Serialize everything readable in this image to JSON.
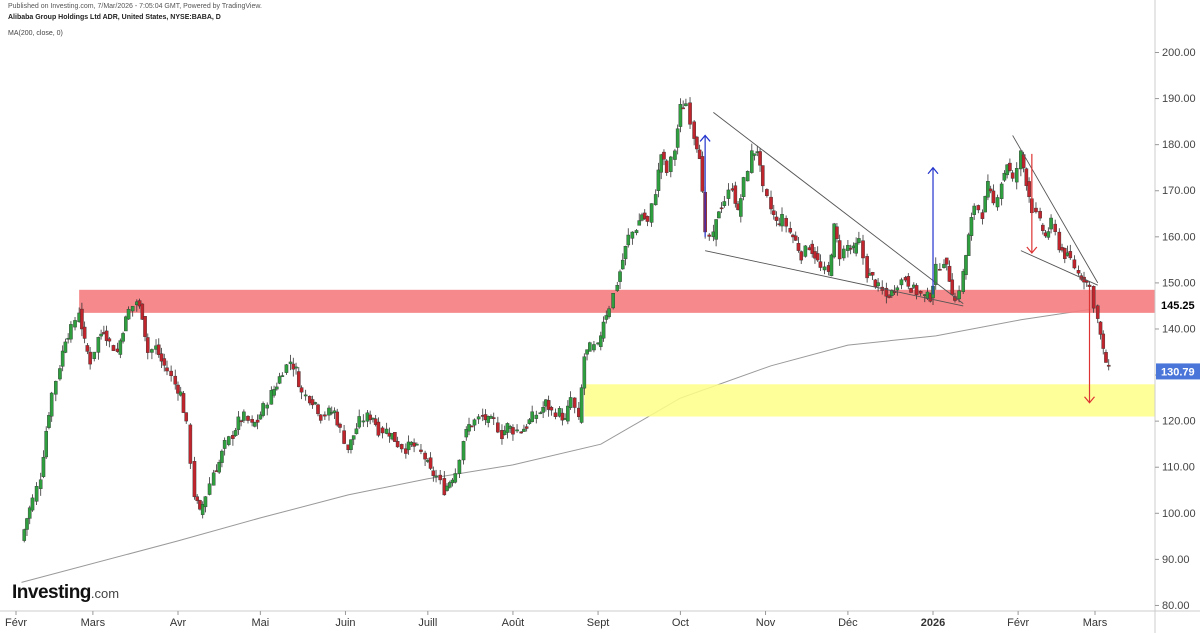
{
  "header": {
    "published": "Published on Investing.com, 7/Mar/2026 - 7:05:04 GMT, Powered by TradingView.",
    "title": "Alibaba Group Holdings Ltd ADR, United States, NYSE:BABA, D",
    "indicator": "MA(200, close, 0)"
  },
  "logo": {
    "brand": "Investing",
    "domain": ".com"
  },
  "colors": {
    "up": "#2e9e3e",
    "down": "#c0242c",
    "ma": "#999999",
    "resistance_zone": "#f47c7e",
    "support_zone": "#ffff88",
    "price_label_last": "#4a76d9",
    "arrow_up": "#2233cc",
    "arrow_down": "#dd3333"
  },
  "chart_data": {
    "type": "candlestick",
    "title": "Alibaba Group Holdings Ltd ADR, United States, NYSE:BABA, D",
    "ylim": [
      78,
      206
    ],
    "y_ticks": [
      "80.00",
      "90.00",
      "100.00",
      "110.00",
      "120.00",
      "130.00",
      "140.00",
      "150.00",
      "160.00",
      "170.00",
      "180.00",
      "190.00",
      "200.00"
    ],
    "x_ticks": [
      "Févr",
      "Mars",
      "Avr",
      "Mai",
      "Juin",
      "Juill",
      "Août",
      "Sept",
      "Oct",
      "Nov",
      "Déc",
      "2026",
      "Févr",
      "Mars"
    ],
    "price_labels": {
      "level": "145.25",
      "last": "130.79"
    },
    "close_path": [
      [
        "2025-02-03",
        94
      ],
      [
        "2025-02-05",
        99
      ],
      [
        "2025-02-07",
        103
      ],
      [
        "2025-02-10",
        108
      ],
      [
        "2025-02-12",
        118
      ],
      [
        "2025-02-14",
        126
      ],
      [
        "2025-02-17",
        132
      ],
      [
        "2025-02-19",
        138
      ],
      [
        "2025-02-21",
        140
      ],
      [
        "2025-02-24",
        144
      ],
      [
        "2025-02-26",
        137
      ],
      [
        "2025-02-28",
        133
      ],
      [
        "2025-03-03",
        138
      ],
      [
        "2025-03-05",
        140
      ],
      [
        "2025-03-07",
        137
      ],
      [
        "2025-03-10",
        135
      ],
      [
        "2025-03-12",
        140
      ],
      [
        "2025-03-14",
        144
      ],
      [
        "2025-03-17",
        146
      ],
      [
        "2025-03-19",
        143
      ],
      [
        "2025-03-21",
        135
      ],
      [
        "2025-03-24",
        136
      ],
      [
        "2025-03-26",
        133
      ],
      [
        "2025-03-28",
        131
      ],
      [
        "2025-03-31",
        128
      ],
      [
        "2025-04-02",
        126
      ],
      [
        "2025-04-04",
        119
      ],
      [
        "2025-04-07",
        104
      ],
      [
        "2025-04-09",
        100
      ],
      [
        "2025-04-11",
        104
      ],
      [
        "2025-04-14",
        109
      ],
      [
        "2025-04-16",
        111
      ],
      [
        "2025-04-18",
        115
      ],
      [
        "2025-04-21",
        117
      ],
      [
        "2025-04-23",
        120
      ],
      [
        "2025-04-25",
        121
      ],
      [
        "2025-04-28",
        119
      ],
      [
        "2025-04-30",
        120
      ],
      [
        "2025-05-02",
        123
      ],
      [
        "2025-05-05",
        126
      ],
      [
        "2025-05-07",
        128
      ],
      [
        "2025-05-09",
        131
      ],
      [
        "2025-05-12",
        133
      ],
      [
        "2025-05-14",
        131
      ],
      [
        "2025-05-16",
        126
      ],
      [
        "2025-05-19",
        125
      ],
      [
        "2025-05-21",
        124
      ],
      [
        "2025-05-23",
        121
      ],
      [
        "2025-05-26",
        122
      ],
      [
        "2025-05-28",
        122
      ],
      [
        "2025-05-30",
        118
      ],
      [
        "2025-06-02",
        114
      ],
      [
        "2025-06-04",
        117
      ],
      [
        "2025-06-06",
        120
      ],
      [
        "2025-06-09",
        121
      ],
      [
        "2025-06-11",
        121
      ],
      [
        "2025-06-13",
        118
      ],
      [
        "2025-06-16",
        118
      ],
      [
        "2025-06-18",
        117
      ],
      [
        "2025-06-20",
        115
      ],
      [
        "2025-06-23",
        114
      ],
      [
        "2025-06-25",
        115
      ],
      [
        "2025-06-27",
        114
      ],
      [
        "2025-06-30",
        112
      ],
      [
        "2025-07-02",
        109
      ],
      [
        "2025-07-04",
        108
      ],
      [
        "2025-07-07",
        105
      ],
      [
        "2025-07-09",
        107
      ],
      [
        "2025-07-11",
        109
      ],
      [
        "2025-07-14",
        116
      ],
      [
        "2025-07-16",
        119
      ],
      [
        "2025-07-18",
        120
      ],
      [
        "2025-07-21",
        121
      ],
      [
        "2025-07-23",
        120
      ],
      [
        "2025-07-25",
        120
      ],
      [
        "2025-07-28",
        117
      ],
      [
        "2025-07-30",
        119
      ],
      [
        "2025-08-01",
        118
      ],
      [
        "2025-08-04",
        118
      ],
      [
        "2025-08-06",
        119
      ],
      [
        "2025-08-08",
        121
      ],
      [
        "2025-08-11",
        122
      ],
      [
        "2025-08-13",
        124
      ],
      [
        "2025-08-15",
        122
      ],
      [
        "2025-08-18",
        122
      ],
      [
        "2025-08-20",
        120
      ],
      [
        "2025-08-22",
        125
      ],
      [
        "2025-08-25",
        120
      ],
      [
        "2025-08-27",
        134
      ],
      [
        "2025-08-29",
        136
      ],
      [
        "2025-09-01",
        136
      ],
      [
        "2025-09-03",
        142
      ],
      [
        "2025-09-05",
        145
      ],
      [
        "2025-09-08",
        150
      ],
      [
        "2025-09-10",
        155
      ],
      [
        "2025-09-12",
        160
      ],
      [
        "2025-09-15",
        162
      ],
      [
        "2025-09-17",
        165
      ],
      [
        "2025-09-19",
        163
      ],
      [
        "2025-09-22",
        170
      ],
      [
        "2025-09-24",
        178
      ],
      [
        "2025-09-26",
        174
      ],
      [
        "2025-09-29",
        179
      ],
      [
        "2025-10-01",
        188
      ],
      [
        "2025-10-03",
        189
      ],
      [
        "2025-10-06",
        182
      ],
      [
        "2025-10-08",
        178
      ],
      [
        "2025-10-10",
        160
      ],
      [
        "2025-10-13",
        160
      ],
      [
        "2025-10-15",
        166
      ],
      [
        "2025-10-17",
        168
      ],
      [
        "2025-10-20",
        171
      ],
      [
        "2025-10-22",
        165
      ],
      [
        "2025-10-24",
        172
      ],
      [
        "2025-10-27",
        178
      ],
      [
        "2025-10-29",
        179
      ],
      [
        "2025-10-31",
        170
      ],
      [
        "2025-11-03",
        166
      ],
      [
        "2025-11-05",
        163
      ],
      [
        "2025-11-07",
        164
      ],
      [
        "2025-11-10",
        161
      ],
      [
        "2025-11-12",
        159
      ],
      [
        "2025-11-14",
        156
      ],
      [
        "2025-11-17",
        158
      ],
      [
        "2025-11-19",
        156
      ],
      [
        "2025-11-21",
        153
      ],
      [
        "2025-11-24",
        152
      ],
      [
        "2025-11-26",
        162
      ],
      [
        "2025-11-28",
        156
      ],
      [
        "2025-12-01",
        158
      ],
      [
        "2025-12-03",
        157
      ],
      [
        "2025-12-05",
        159
      ],
      [
        "2025-12-08",
        152
      ],
      [
        "2025-12-10",
        151
      ],
      [
        "2025-12-12",
        149
      ],
      [
        "2025-12-15",
        147
      ],
      [
        "2025-12-17",
        148
      ],
      [
        "2025-12-19",
        150
      ],
      [
        "2025-12-22",
        151
      ],
      [
        "2025-12-24",
        149
      ],
      [
        "2025-12-26",
        148
      ],
      [
        "2025-12-29",
        147
      ],
      [
        "2025-12-31",
        147
      ],
      [
        "2026-01-02",
        153
      ],
      [
        "2026-01-05",
        155
      ],
      [
        "2026-01-07",
        151
      ],
      [
        "2026-01-09",
        146
      ],
      [
        "2026-01-12",
        152
      ],
      [
        "2026-01-14",
        160
      ],
      [
        "2026-01-16",
        167
      ],
      [
        "2026-01-19",
        165
      ],
      [
        "2026-01-21",
        171
      ],
      [
        "2026-01-23",
        167
      ],
      [
        "2026-01-26",
        172
      ],
      [
        "2026-01-28",
        176
      ],
      [
        "2026-01-30",
        172
      ],
      [
        "2026-02-02",
        178
      ],
      [
        "2026-02-04",
        172
      ],
      [
        "2026-02-06",
        166
      ],
      [
        "2026-02-09",
        163
      ],
      [
        "2026-02-11",
        160
      ],
      [
        "2026-02-13",
        163
      ],
      [
        "2026-02-16",
        158
      ],
      [
        "2026-02-18",
        156
      ],
      [
        "2026-02-20",
        155
      ],
      [
        "2026-02-23",
        152
      ],
      [
        "2026-02-25",
        151
      ],
      [
        "2026-02-27",
        149
      ],
      [
        "2026-03-02",
        142
      ],
      [
        "2026-03-04",
        135
      ],
      [
        "2026-03-06",
        130.79
      ]
    ],
    "ma200_path": [
      [
        "2025-02-03",
        85
      ],
      [
        "2025-04-01",
        94
      ],
      [
        "2025-05-01",
        99
      ],
      [
        "2025-06-02",
        104
      ],
      [
        "2025-07-01",
        107.5
      ],
      [
        "2025-08-01",
        110.5
      ],
      [
        "2025-09-02",
        115
      ],
      [
        "2025-10-01",
        125
      ],
      [
        "2025-11-03",
        132
      ],
      [
        "2025-12-01",
        136.5
      ],
      [
        "2026-01-02",
        138.5
      ],
      [
        "2026-02-02",
        142
      ],
      [
        "2026-03-02",
        144.5
      ]
    ],
    "zones": [
      {
        "name": "resistance",
        "ymin": 143.5,
        "ymax": 148.5,
        "x_from": "2025-02-24",
        "x_to": "2026-03-10"
      },
      {
        "name": "support",
        "ymin": 121,
        "ymax": 128,
        "x_from": "2025-08-27",
        "x_to": "2026-03-10"
      }
    ],
    "trendlines": [
      {
        "from": [
          "2025-10-13",
          187
        ],
        "to": [
          "2026-01-12",
          145.5
        ]
      },
      {
        "from": [
          "2025-10-10",
          157
        ],
        "to": [
          "2026-01-12",
          145
        ]
      },
      {
        "from": [
          "2026-01-30",
          182
        ],
        "to": [
          "2026-03-02",
          150
        ]
      },
      {
        "from": [
          "2026-02-02",
          157
        ],
        "to": [
          "2026-03-02",
          149.5
        ]
      }
    ],
    "arrows": [
      {
        "dir": "up",
        "x": "2025-10-10",
        "y_from": 160,
        "y_to": 182
      },
      {
        "dir": "up",
        "x": "2026-01-01",
        "y_from": 147.5,
        "y_to": 175
      },
      {
        "dir": "down",
        "x": "2026-02-06",
        "y_from": 178,
        "y_to": 156.5
      },
      {
        "dir": "down",
        "x": "2026-02-27",
        "y_from": 149,
        "y_to": 124
      }
    ]
  }
}
